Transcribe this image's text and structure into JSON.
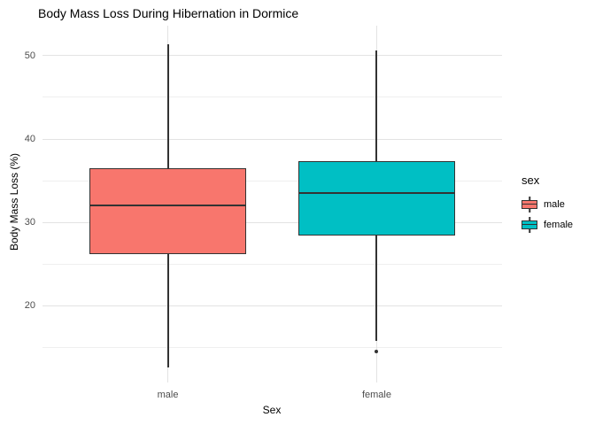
{
  "chart_data": {
    "type": "boxplot",
    "title": "Body Mass Loss During Hibernation in Dormice",
    "xlabel": "Sex",
    "ylabel": "Body Mass Loss (%)",
    "categories": [
      "male",
      "female"
    ],
    "series": [
      {
        "name": "male",
        "fill_color": "#F8766D",
        "whisker_low": 12.6,
        "q1": 26.2,
        "median": 32.0,
        "q3": 36.5,
        "whisker_high": 51.4,
        "outliers": []
      },
      {
        "name": "female",
        "fill_color": "#00BFC4",
        "whisker_low": 15.8,
        "q1": 28.4,
        "median": 33.5,
        "q3": 37.4,
        "whisker_high": 50.6,
        "outliers": [
          14.5
        ]
      }
    ],
    "y_major_ticks": [
      20,
      30,
      40,
      50
    ],
    "y_minor_ticks": [
      15,
      25,
      35,
      45
    ],
    "ylim": [
      10.8,
      53.6
    ],
    "grid": true,
    "legend": {
      "title": "sex",
      "position": "right",
      "entries": [
        "male",
        "female"
      ]
    },
    "stroke_color": "#333333",
    "background": "#ffffff"
  }
}
